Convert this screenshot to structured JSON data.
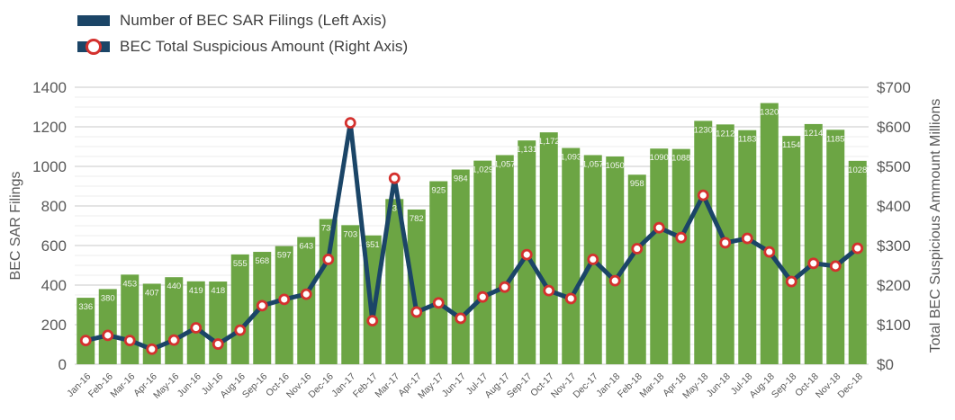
{
  "legend": {
    "items": [
      {
        "label": "Number of BEC SAR Filings (Left Axis)"
      },
      {
        "label": "BEC Total Suspicious Amount (Right Axis)"
      }
    ]
  },
  "chart_data": {
    "type": "bar+line combo",
    "categories": [
      "Jan-16",
      "Feb-16",
      "Mar-16",
      "Apr-16",
      "May-16",
      "Jun-16",
      "Jul-16",
      "Aug-16",
      "Sep-16",
      "Oct-16",
      "Nov-16",
      "Dec-16",
      "Jan-17",
      "Feb-17",
      "Mar-17",
      "Apr-17",
      "May-17",
      "Jun-17",
      "Jul-17",
      "Aug-17",
      "Sep-17",
      "Oct-17",
      "Nov-17",
      "Dec-17",
      "Jan-18",
      "Feb-18",
      "Mar-18",
      "Apr-18",
      "May-18",
      "Jun-18",
      "Jul-18",
      "Aug-18",
      "Sep-18",
      "Oct-18",
      "Nov-18",
      "Dec-18"
    ],
    "series": [
      {
        "name": "Number of BEC SAR Filings (Left Axis)",
        "type": "bar",
        "axis": "left",
        "color": "#6ca544",
        "label_color": "#f4f6f2",
        "values": [
          336,
          380,
          453,
          407,
          440,
          419,
          418,
          555,
          568,
          597,
          643,
          734,
          703,
          651,
          835,
          782,
          925,
          984,
          1029,
          1057,
          1131,
          1172,
          1093,
          1057,
          1050,
          958,
          1090,
          1088,
          1230,
          1212,
          1183,
          1320,
          1154,
          1214,
          1185,
          1028
        ],
        "value_labels": [
          "336",
          "380",
          "453",
          "407",
          "440",
          "419",
          "418",
          "555",
          "568",
          "597",
          "643",
          "734",
          "703",
          "651",
          "835",
          "782",
          "925",
          "984",
          "1,029",
          "1,057",
          "1,131",
          "1,172",
          "1,093",
          "1,057",
          "1050",
          "958",
          "1090",
          "1088",
          "1230",
          "1212",
          "1183",
          "1320",
          "1154",
          "1214",
          "1185",
          "1028"
        ]
      },
      {
        "name": "BEC Total Suspicious Amount (Right Axis)",
        "type": "line",
        "axis": "right",
        "color": "#1b4567",
        "marker_color": "#d4312e",
        "marker_fill": "#ffffff",
        "values": [
          60,
          73,
          60,
          38,
          61,
          92,
          51,
          86,
          148,
          164,
          177,
          265,
          610,
          110,
          470,
          132,
          155,
          116,
          170,
          195,
          277,
          186,
          166,
          265,
          211,
          292,
          345,
          320,
          427,
          307,
          318,
          284,
          209,
          255,
          248,
          293
        ]
      }
    ],
    "left_axis": {
      "title": "BEC SAR Filings",
      "min": 0,
      "max": 1400,
      "step": 200,
      "tick_labels": [
        "0",
        "200",
        "400",
        "600",
        "800",
        "1000",
        "1200",
        "1400"
      ]
    },
    "right_axis": {
      "title": "Total BEC Suspicious Ammount Millions",
      "min": 0,
      "max": 700,
      "step": 100,
      "tick_labels": [
        "$0",
        "$100",
        "$200",
        "$300",
        "$400",
        "$500",
        "$600",
        "$700"
      ]
    },
    "grid": {
      "on": true,
      "minor_step_left": 50,
      "minor_color": "#ededed",
      "major_color": "#c9c9c9"
    },
    "text_color": "#595959",
    "legend_position": "top-left"
  }
}
